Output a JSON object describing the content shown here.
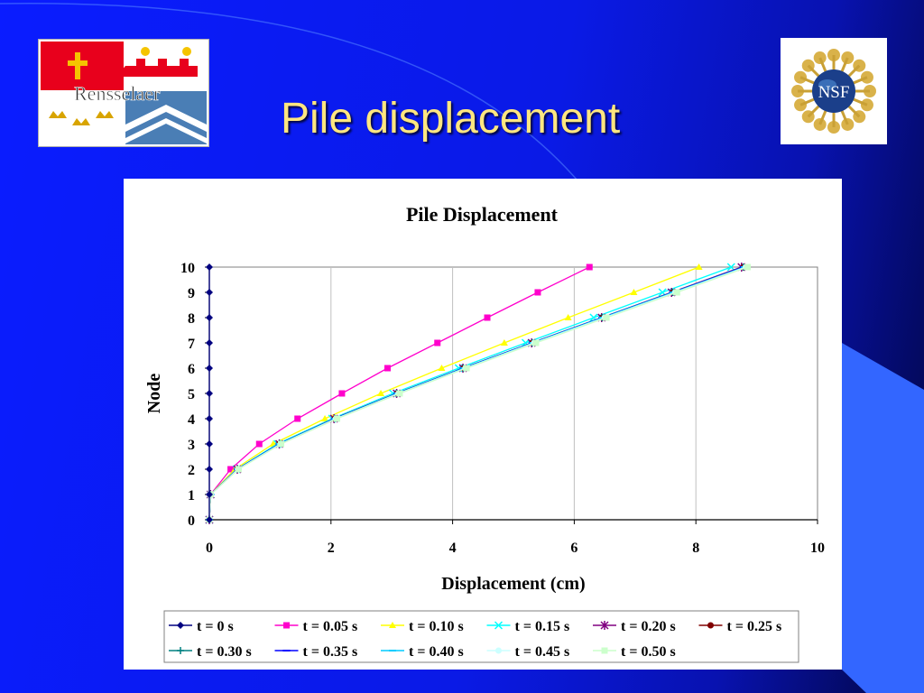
{
  "slide": {
    "title": "Pile displacement",
    "logos": {
      "left": {
        "name": "rensselaer-logo",
        "text": "Rensselaer"
      },
      "right": {
        "name": "nsf-logo",
        "text": "NSF"
      }
    },
    "colors": {
      "background": "#0a1cff",
      "title": "#ffe680",
      "accent_shape": "#3366ff"
    }
  },
  "chart_data": {
    "type": "line",
    "title": "Pile Displacement",
    "xlabel": "Displacement (cm)",
    "ylabel": "Node",
    "xlim": [
      0,
      10
    ],
    "ylim": [
      0,
      10
    ],
    "xticks": [
      0,
      2,
      4,
      6,
      8,
      10
    ],
    "yticks": [
      0,
      1,
      2,
      3,
      4,
      5,
      6,
      7,
      8,
      9,
      10
    ],
    "grid": "vertical",
    "legend_position": "bottom",
    "series": [
      {
        "name": "t = 0 s",
        "color": "#000080",
        "marker": "diamond",
        "x": [
          0,
          0,
          0,
          0,
          0,
          0,
          0,
          0,
          0,
          0,
          0
        ],
        "y": [
          0,
          1,
          2,
          3,
          4,
          5,
          6,
          7,
          8,
          9,
          10
        ]
      },
      {
        "name": "t = 0.05 s",
        "color": "#ff00cc",
        "marker": "square",
        "x": [
          0,
          0.02,
          0.35,
          0.82,
          1.45,
          2.18,
          2.93,
          3.75,
          4.57,
          5.4,
          6.25
        ],
        "y": [
          0,
          1,
          2,
          3,
          4,
          5,
          6,
          7,
          8,
          9,
          10
        ]
      },
      {
        "name": "t = 0.10 s",
        "color": "#ffff00",
        "marker": "triangle",
        "x": [
          0,
          0.02,
          0.42,
          1.05,
          1.9,
          2.82,
          3.82,
          4.85,
          5.9,
          6.98,
          8.05
        ],
        "y": [
          0,
          1,
          2,
          3,
          4,
          5,
          6,
          7,
          8,
          9,
          10
        ]
      },
      {
        "name": "t = 0.15 s",
        "color": "#00ffff",
        "marker": "x",
        "x": [
          0,
          0.02,
          0.45,
          1.12,
          2.02,
          3.02,
          4.1,
          5.2,
          6.32,
          7.45,
          8.58
        ],
        "y": [
          0,
          1,
          2,
          3,
          4,
          5,
          6,
          7,
          8,
          9,
          10
        ]
      },
      {
        "name": "t = 0.20 s",
        "color": "#800080",
        "marker": "star",
        "x": [
          0,
          0.02,
          0.46,
          1.15,
          2.05,
          3.08,
          4.17,
          5.3,
          6.45,
          7.6,
          8.75
        ],
        "y": [
          0,
          1,
          2,
          3,
          4,
          5,
          6,
          7,
          8,
          9,
          10
        ]
      },
      {
        "name": "t = 0.25 s",
        "color": "#800000",
        "marker": "circle",
        "x": [
          0,
          0.02,
          0.46,
          1.15,
          2.06,
          3.09,
          4.18,
          5.31,
          6.46,
          7.62,
          8.78
        ],
        "y": [
          0,
          1,
          2,
          3,
          4,
          5,
          6,
          7,
          8,
          9,
          10
        ]
      },
      {
        "name": "t = 0.30 s",
        "color": "#008080",
        "marker": "plus",
        "x": [
          0,
          0.02,
          0.46,
          1.15,
          2.06,
          3.09,
          4.18,
          5.31,
          6.46,
          7.62,
          8.78
        ],
        "y": [
          0,
          1,
          2,
          3,
          4,
          5,
          6,
          7,
          8,
          9,
          10
        ]
      },
      {
        "name": "t = 0.35 s",
        "color": "#0000ff",
        "marker": "dash",
        "x": [
          0,
          0.02,
          0.46,
          1.15,
          2.06,
          3.09,
          4.18,
          5.31,
          6.46,
          7.62,
          8.78
        ],
        "y": [
          0,
          1,
          2,
          3,
          4,
          5,
          6,
          7,
          8,
          9,
          10
        ]
      },
      {
        "name": "t = 0.40 s",
        "color": "#00ccff",
        "marker": "dash",
        "x": [
          0,
          0.02,
          0.47,
          1.16,
          2.07,
          3.1,
          4.19,
          5.32,
          6.47,
          7.63,
          8.8
        ],
        "y": [
          0,
          1,
          2,
          3,
          4,
          5,
          6,
          7,
          8,
          9,
          10
        ]
      },
      {
        "name": "t = 0.45 s",
        "color": "#ccffff",
        "marker": "circle",
        "x": [
          0,
          0.02,
          0.47,
          1.17,
          2.08,
          3.11,
          4.21,
          5.34,
          6.5,
          7.66,
          8.82
        ],
        "y": [
          0,
          1,
          2,
          3,
          4,
          5,
          6,
          7,
          8,
          9,
          10
        ]
      },
      {
        "name": "t = 0.50 s",
        "color": "#ccffcc",
        "marker": "square",
        "x": [
          0,
          0.02,
          0.48,
          1.18,
          2.1,
          3.13,
          4.23,
          5.37,
          6.53,
          7.69,
          8.85
        ],
        "y": [
          0,
          1,
          2,
          3,
          4,
          5,
          6,
          7,
          8,
          9,
          10
        ]
      }
    ]
  }
}
